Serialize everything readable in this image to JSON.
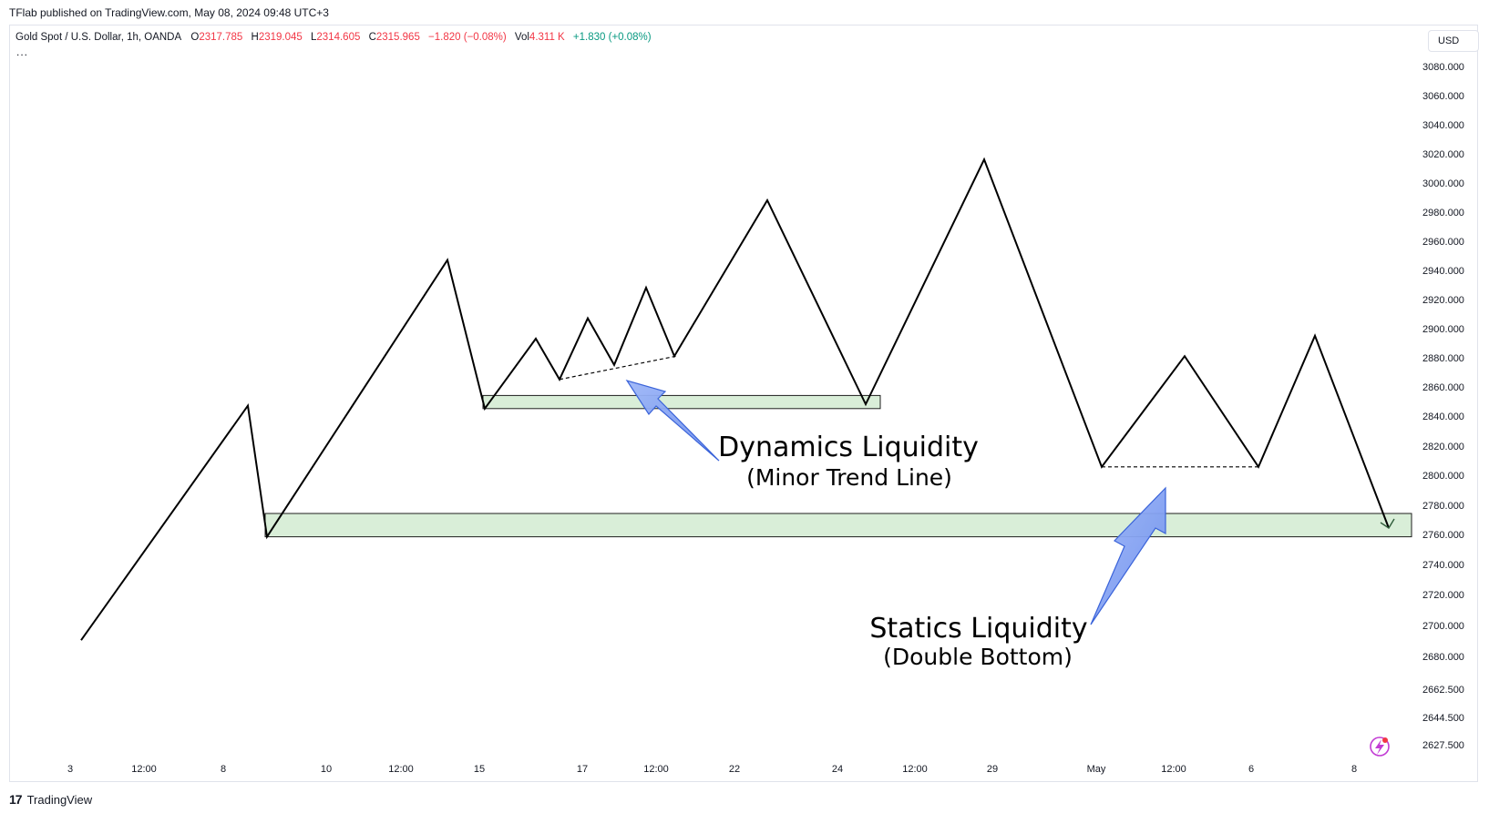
{
  "header": {
    "publisher": "TFlab published on TradingView.com, May 08, 2024 09:48 UTC+3"
  },
  "legend": {
    "symbol": "Gold Spot / U.S. Dollar, 1h, OANDA",
    "o_label": "O",
    "o_value": "2317.785",
    "h_label": "H",
    "h_value": "2319.045",
    "l_label": "L",
    "l_value": "2314.605",
    "c_label": "C",
    "c_value": "2315.965",
    "change": "−1.820 (−0.08%)",
    "vol_label": "Vol",
    "vol_value": "4.311 K",
    "vol_change": "+1.830 (+0.08%)",
    "more": "..."
  },
  "currency_button": "USD",
  "footer": {
    "logo": "17",
    "brand": "TradingView"
  },
  "colors": {
    "line": "#000000",
    "zone_fill": "#d9eed8",
    "zone_stroke": "#1e1e1e",
    "arrow_fill": "#7d9ef3",
    "arrow_stroke": "#3a63d9",
    "red": "#f23645",
    "green": "#089981"
  },
  "chart_data": {
    "type": "line",
    "title": "",
    "xlabel": "",
    "ylabel": "",
    "ylim": [
      2627.5,
      3085
    ],
    "x_tick_labels": [
      "3",
      "12:00",
      "8",
      "10",
      "12:00",
      "15",
      "17",
      "12:00",
      "22",
      "24",
      "12:00",
      "29",
      "May",
      "12:00",
      "6",
      "8"
    ],
    "y_tick_labels": [
      "2627.500",
      "2644.500",
      "2662.500",
      "2680.000",
      "2700.000",
      "2720.000",
      "2740.000",
      "2760.000",
      "2780.000",
      "2800.000",
      "2820.000",
      "2840.000",
      "2860.000",
      "2880.000",
      "2900.000",
      "2920.000",
      "2940.000",
      "2960.000",
      "2980.000",
      "3000.000",
      "3020.000",
      "3040.000",
      "3060.000",
      "3080.000"
    ],
    "series": [
      {
        "y": [
          2673,
          2834,
          2744,
          2934,
          2832,
          2880,
          2852,
          2894,
          2862,
          2915,
          2868,
          2975,
          2835,
          3003,
          2792,
          2868,
          2792,
          2882,
          2750
        ]
      }
    ],
    "zones": [
      {
        "from": 2832,
        "to": 2841
      },
      {
        "from": 2744,
        "to": 2760
      }
    ],
    "trend_lines": [
      {
        "from": 2852,
        "to": 2868,
        "style": "dashed"
      },
      {
        "from": 2792,
        "to": 2792,
        "style": "dashed"
      }
    ],
    "annotations": [
      {
        "title": "Dynamics Liquidity",
        "subtitle": "(Minor Trend Line)"
      },
      {
        "title": "Statics Liquidity",
        "subtitle": "(Double Bottom)"
      }
    ]
  }
}
